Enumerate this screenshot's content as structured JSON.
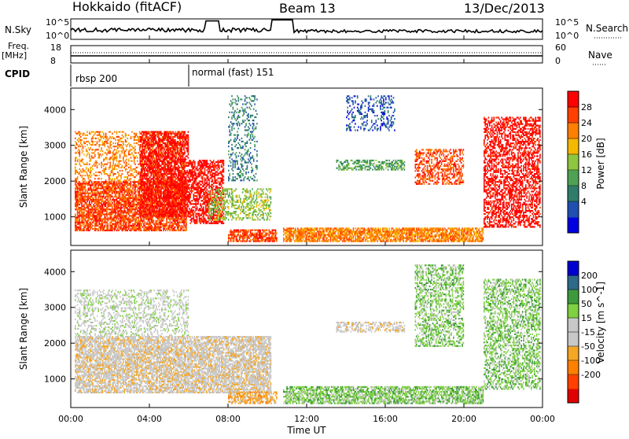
{
  "header": {
    "station": "Hokkaido (fitACF)",
    "beam": "Beam 13",
    "date": "13/Dec/2013"
  },
  "top_panels": {
    "nsky_label": "N.Sky",
    "nsky_top_tick": "10^5",
    "nsky_bottom_tick": "10^0",
    "nsearch_label": "N.Search",
    "nsearch_top_tick": "10^5",
    "nsearch_bottom_tick": "10^0",
    "freq_label": "Freq.",
    "freq_unit": "[MHz]",
    "freq_top_tick": "18",
    "freq_bottom_tick": "8",
    "nave_label": "Nave",
    "nave_top_tick": "60",
    "nave_bottom_tick": "0",
    "cpid_label": "CPID",
    "cpid_segments": [
      {
        "label": "rbsp 200",
        "start_h": 0
      },
      {
        "label": "normal (fast) 151",
        "start_h": 6
      }
    ]
  },
  "chart_data": [
    {
      "type": "heatmap",
      "quantity": "Power",
      "ylabel": "Slant Range [km]",
      "ylim": [
        200,
        4600
      ],
      "yticks": [
        1000,
        2000,
        3000,
        4000
      ],
      "xlim_hours": [
        0,
        24
      ],
      "colorbar_label": "Power [dB]",
      "colorbar_ticks": [
        "28",
        "24",
        "20",
        "16",
        "12",
        "8",
        "4"
      ],
      "colorbar_colors": [
        "#0000e0",
        "#1f4fb0",
        "#2e7d6b",
        "#4da353",
        "#8ec63f",
        "#f5b800",
        "#ff8000",
        "#ff4000",
        "#ff0000"
      ],
      "regions": [
        {
          "t0": 0.2,
          "t1": 5.9,
          "r0": 600,
          "r1": 2000,
          "level": 7,
          "density": 0.75
        },
        {
          "t0": 0.2,
          "t1": 5.8,
          "r0": 2000,
          "r1": 3400,
          "level": 6,
          "density": 0.35
        },
        {
          "t0": 3.5,
          "t1": 6.0,
          "r0": 1000,
          "r1": 3400,
          "level": 8,
          "density": 0.7
        },
        {
          "t0": 6.0,
          "t1": 7.8,
          "r0": 800,
          "r1": 2600,
          "level": 8,
          "density": 0.6
        },
        {
          "t0": 7.0,
          "t1": 10.2,
          "r0": 900,
          "r1": 1800,
          "level": 4,
          "density": 0.45
        },
        {
          "t0": 8.0,
          "t1": 10.5,
          "r0": 300,
          "r1": 650,
          "level": 7,
          "density": 0.7
        },
        {
          "t0": 8.0,
          "t1": 9.5,
          "r0": 2000,
          "r1": 4400,
          "level": 2,
          "density": 0.25
        },
        {
          "t0": 10.8,
          "t1": 21.0,
          "r0": 300,
          "r1": 700,
          "level": 6,
          "density": 0.75
        },
        {
          "t0": 13.5,
          "t1": 17.0,
          "r0": 2300,
          "r1": 2600,
          "level": 3,
          "density": 0.5
        },
        {
          "t0": 14.0,
          "t1": 16.5,
          "r0": 3400,
          "r1": 4400,
          "level": 1,
          "density": 0.3
        },
        {
          "t0": 17.5,
          "t1": 20.0,
          "r0": 1900,
          "r1": 2900,
          "level": 7,
          "density": 0.5
        },
        {
          "t0": 21.0,
          "t1": 23.9,
          "r0": 700,
          "r1": 3800,
          "level": 8,
          "density": 0.55
        }
      ]
    },
    {
      "type": "heatmap",
      "quantity": "Velocity",
      "ylabel": "Slant Range [km]",
      "ylim": [
        200,
        4600
      ],
      "yticks": [
        1000,
        2000,
        3000,
        4000
      ],
      "xlim_hours": [
        0,
        24
      ],
      "xticks": [
        "00:00",
        "04:00",
        "08:00",
        "12:00",
        "16:00",
        "20:00",
        "00:00"
      ],
      "xlabel": "Time UT",
      "colorbar_label": "Velocity [m s^-1]",
      "colorbar_ticks": [
        "200",
        "100",
        "50",
        "15",
        "-15",
        "-50",
        "-100",
        "-200"
      ],
      "colorbar_colors": [
        "#e00000",
        "#ff4000",
        "#ff8000",
        "#f5a623",
        "#c8c8c8",
        "#c8c8c8",
        "#7ed140",
        "#3c9a3c",
        "#2e6a8a",
        "#0000d0"
      ],
      "regions": [
        {
          "t0": 0.2,
          "t1": 10.2,
          "r0": 600,
          "r1": 2200,
          "level": 4,
          "density": 0.75
        },
        {
          "t0": 0.2,
          "t1": 6.0,
          "r0": 2200,
          "r1": 3500,
          "level": 5,
          "density": 0.35
        },
        {
          "t0": 8.0,
          "t1": 10.5,
          "r0": 300,
          "r1": 650,
          "level": 3,
          "density": 0.6
        },
        {
          "t0": 10.8,
          "t1": 21.0,
          "r0": 300,
          "r1": 800,
          "level": 6,
          "density": 0.7
        },
        {
          "t0": 13.5,
          "t1": 17.0,
          "r0": 2300,
          "r1": 2600,
          "level": 4,
          "density": 0.5
        },
        {
          "t0": 17.5,
          "t1": 20.0,
          "r0": 1900,
          "r1": 4200,
          "level": 6,
          "density": 0.45
        },
        {
          "t0": 21.0,
          "t1": 23.9,
          "r0": 700,
          "r1": 3800,
          "level": 6,
          "density": 0.5
        }
      ]
    }
  ]
}
